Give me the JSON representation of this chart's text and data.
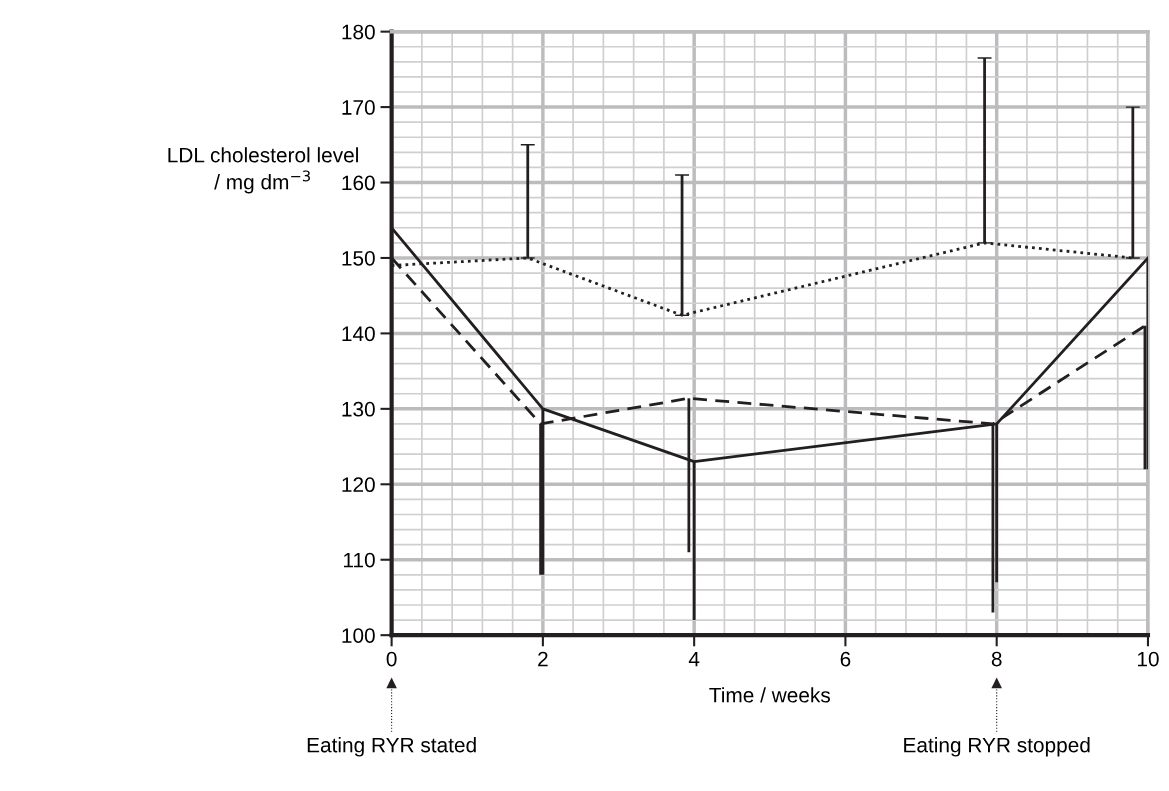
{
  "chart_data": {
    "type": "line",
    "xlabel": "Time / weeks",
    "ylabel": "LDL cholesterol level\n/ mg dm$^{−3}$",
    "xlim": [
      0,
      10
    ],
    "xticks": [
      0,
      2,
      4,
      6,
      8,
      10
    ],
    "ylim": [
      100,
      180
    ],
    "yticks": [
      100,
      110,
      120,
      130,
      140,
      150,
      160,
      170,
      180
    ],
    "grid": true,
    "series": [
      {
        "color": "#231f20",
        "line_style": "solid",
        "x": [
          0,
          2,
          4,
          8,
          10
        ],
        "values": [
          154,
          130,
          123,
          128,
          150
        ],
        "errors": [
          null,
          [
            108,
            130
          ],
          [
            102,
            123
          ],
          [
            107,
            128
          ],
          [
            122,
            150
          ]
        ]
      },
      {
        "color": "#231f20",
        "line_style": "dashed",
        "x": [
          0,
          1.97,
          3.93,
          7.95,
          9.96
        ],
        "values": [
          150,
          128,
          131.4,
          128,
          141
        ],
        "errors": [
          null,
          [
            108,
            128
          ],
          [
            111,
            131.4
          ],
          [
            103,
            128
          ],
          [
            122,
            141
          ]
        ]
      },
      {
        "color": "#231f20",
        "line_style": "dotted",
        "x": [
          0,
          1.8,
          3.84,
          7.84,
          9.8
        ],
        "values": [
          149,
          150,
          142.4,
          152,
          150
        ],
        "errors": [
          null,
          [
            150,
            165
          ],
          [
            142.4,
            161
          ],
          [
            152,
            176.5
          ],
          [
            150,
            170
          ]
        ]
      }
    ],
    "annotations": [
      {
        "text": "Eating RYR stated",
        "x": 0
      },
      {
        "text": "Eating RYR stopped",
        "x": 8
      }
    ]
  }
}
